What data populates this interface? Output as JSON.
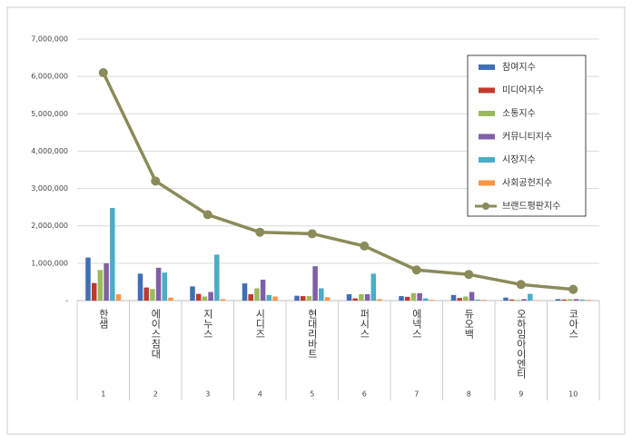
{
  "chart_data": {
    "type": "bar",
    "categories": [
      "한샘",
      "에이스침대",
      "지누스",
      "시디즈",
      "현대리바트",
      "퍼시스",
      "에넥스",
      "듀오백",
      "오하임아이엔티",
      "코아스"
    ],
    "category_groups": [
      "1",
      "2",
      "3",
      "4",
      "5",
      "6",
      "7",
      "8",
      "9",
      "10"
    ],
    "series": [
      {
        "name": "참여지수",
        "color": "#3f6fb5",
        "values": [
          1150000,
          720000,
          380000,
          460000,
          130000,
          170000,
          120000,
          150000,
          80000,
          40000
        ]
      },
      {
        "name": "미디어지수",
        "color": "#c0392b",
        "values": [
          470000,
          350000,
          180000,
          170000,
          120000,
          60000,
          100000,
          70000,
          30000,
          30000
        ]
      },
      {
        "name": "소통지수",
        "color": "#9bbb59",
        "values": [
          820000,
          310000,
          110000,
          330000,
          120000,
          170000,
          200000,
          110000,
          20000,
          40000
        ]
      },
      {
        "name": "커뮤니티지수",
        "color": "#7f5fa8",
        "values": [
          1000000,
          880000,
          230000,
          560000,
          920000,
          170000,
          200000,
          230000,
          40000,
          40000
        ]
      },
      {
        "name": "시장지수",
        "color": "#4bacc6",
        "values": [
          2480000,
          750000,
          1230000,
          150000,
          330000,
          720000,
          60000,
          30000,
          180000,
          30000
        ]
      },
      {
        "name": "사회공헌지수",
        "color": "#f79646",
        "values": [
          170000,
          80000,
          40000,
          110000,
          90000,
          40000,
          20000,
          20000,
          10000,
          20000
        ]
      },
      {
        "name": "브랜드평판지수",
        "color": "#8b8b5a",
        "type": "line",
        "values": [
          6100000,
          3200000,
          2300000,
          1830000,
          1790000,
          1460000,
          820000,
          700000,
          430000,
          300000
        ]
      }
    ],
    "ylim": [
      0,
      7000000
    ],
    "yticks": [
      {
        "value": 0,
        "label": "-"
      },
      {
        "value": 1000000,
        "label": "1,000,000"
      },
      {
        "value": 2000000,
        "label": "2,000,000"
      },
      {
        "value": 3000000,
        "label": "3,000,000"
      },
      {
        "value": 4000000,
        "label": "4,000,000"
      },
      {
        "value": 5000000,
        "label": "5,000,000"
      },
      {
        "value": 6000000,
        "label": "6,000,000"
      },
      {
        "value": 7000000,
        "label": "7,000,000"
      }
    ],
    "grid": true,
    "legend": "upper right"
  }
}
